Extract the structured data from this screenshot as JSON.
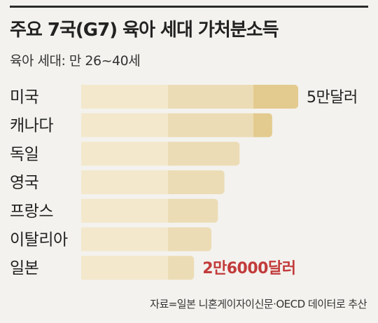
{
  "header": {
    "title": "주요 7국(G7) 육아 세대 가처분소득",
    "subtitle": "육아 세대: 만 26~40세"
  },
  "source": "자료=일본 니혼게이자이신문·OECD 데이터로 추산",
  "colors": {
    "bar_base": "#f3e8cc",
    "bar_mid": "#ecdcb5",
    "bar_top": "#e3cb8f",
    "highlight_label": "#c23b3b",
    "text": "#222222"
  },
  "chart_data": {
    "type": "bar",
    "orientation": "horizontal",
    "categories": [
      "미국",
      "캐나다",
      "독일",
      "영국",
      "프랑스",
      "이탈리아",
      "일본"
    ],
    "values": [
      50000,
      44000,
      36500,
      33000,
      31500,
      30000,
      26000
    ],
    "unit": "달러",
    "data_labels": [
      "5만달러",
      "",
      "",
      "",
      "",
      "",
      "2만6000달러"
    ],
    "xlim": [
      0,
      50000
    ]
  }
}
